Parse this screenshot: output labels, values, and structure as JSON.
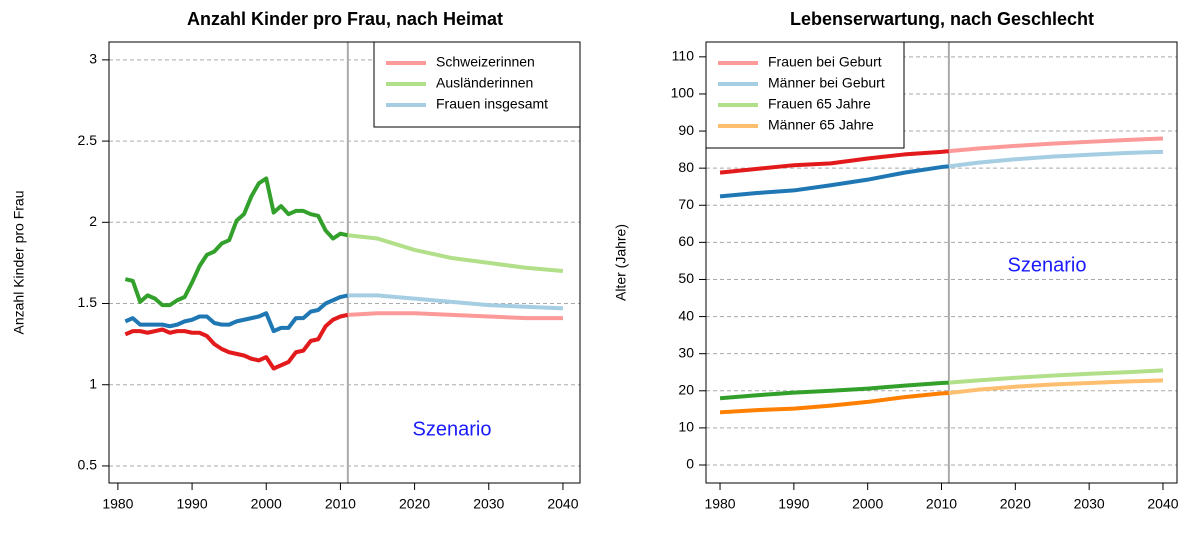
{
  "chart_data": [
    {
      "type": "line",
      "title": "Anzahl Kinder pro Frau, nach Heimat",
      "y_label": "Anzahl Kinder pro Frau",
      "annotation": "Szenario",
      "x": [
        1981,
        1982,
        1983,
        1984,
        1985,
        1986,
        1987,
        1988,
        1989,
        1990,
        1991,
        1992,
        1993,
        1994,
        1995,
        1996,
        1997,
        1998,
        1999,
        2000,
        2001,
        2002,
        2003,
        2004,
        2005,
        2006,
        2007,
        2008,
        2009,
        2010,
        2011,
        2015,
        2020,
        2025,
        2030,
        2035,
        2040
      ],
      "scenario_start": 2011,
      "series": [
        {
          "name": "Schweizerinnen",
          "color": "#fb9a99",
          "history_color": "#e31a1c",
          "values": [
            1.31,
            1.33,
            1.33,
            1.32,
            1.33,
            1.34,
            1.32,
            1.33,
            1.33,
            1.32,
            1.32,
            1.3,
            1.25,
            1.22,
            1.2,
            1.19,
            1.18,
            1.16,
            1.15,
            1.17,
            1.1,
            1.12,
            1.14,
            1.2,
            1.21,
            1.27,
            1.28,
            1.36,
            1.4,
            1.42,
            1.43,
            1.44,
            1.44,
            1.43,
            1.42,
            1.41,
            1.41
          ]
        },
        {
          "name": "Ausländerinnen",
          "color": "#b2df8a",
          "history_color": "#33a02c",
          "values": [
            1.65,
            1.64,
            1.51,
            1.55,
            1.53,
            1.49,
            1.49,
            1.52,
            1.54,
            1.63,
            1.73,
            1.8,
            1.82,
            1.87,
            1.89,
            2.01,
            2.05,
            2.16,
            2.24,
            2.27,
            2.06,
            2.1,
            2.05,
            2.07,
            2.07,
            2.05,
            2.04,
            1.95,
            1.9,
            1.93,
            1.92,
            1.9,
            1.83,
            1.78,
            1.75,
            1.72,
            1.7
          ]
        },
        {
          "name": "Frauen insgesamt",
          "color": "#a6cee3",
          "history_color": "#1f78b4",
          "values": [
            1.39,
            1.41,
            1.37,
            1.37,
            1.37,
            1.37,
            1.36,
            1.37,
            1.39,
            1.4,
            1.42,
            1.42,
            1.38,
            1.37,
            1.37,
            1.39,
            1.4,
            1.41,
            1.42,
            1.44,
            1.33,
            1.35,
            1.35,
            1.41,
            1.41,
            1.45,
            1.46,
            1.5,
            1.52,
            1.54,
            1.55,
            1.55,
            1.53,
            1.51,
            1.49,
            1.48,
            1.47
          ]
        }
      ],
      "xlim": [
        1978.8,
        2042.3
      ],
      "xticks": [
        1980,
        1990,
        2000,
        2010,
        2020,
        2030,
        2040
      ],
      "ylim": [
        0.395,
        3.11
      ],
      "yticks": [
        0.5,
        1,
        1.5,
        2,
        2.5,
        3
      ],
      "grid": true,
      "legend": "top-right"
    },
    {
      "type": "line",
      "title": "Lebenserwartung, nach Geschlecht",
      "y_label": "Alter (Jahre)",
      "annotation": "Szenario",
      "x": [
        1980,
        1985,
        1990,
        1995,
        2000,
        2005,
        2010,
        2011,
        2015,
        2020,
        2025,
        2030,
        2035,
        2040
      ],
      "scenario_start": 2011,
      "series": [
        {
          "name": "Frauen bei Geburt",
          "color": "#fb9a99",
          "history_color": "#e31a1c",
          "values": [
            78.8,
            79.8,
            80.8,
            81.3,
            82.6,
            83.7,
            84.4,
            84.6,
            85.3,
            86.0,
            86.6,
            87.1,
            87.6,
            88.0
          ]
        },
        {
          "name": "Männer bei Geburt",
          "color": "#a6cee3",
          "history_color": "#1f78b4",
          "values": [
            72.4,
            73.3,
            74.0,
            75.4,
            76.9,
            78.8,
            80.3,
            80.5,
            81.5,
            82.4,
            83.1,
            83.6,
            84.1,
            84.4
          ]
        },
        {
          "name": "Frauen 65 Jahre",
          "color": "#b2df8a",
          "history_color": "#33a02c",
          "values": [
            18.0,
            18.8,
            19.5,
            20.0,
            20.6,
            21.4,
            22.1,
            22.2,
            22.8,
            23.5,
            24.1,
            24.6,
            25.0,
            25.5
          ]
        },
        {
          "name": "Männer 65 Jahre",
          "color": "#fdbf6f",
          "history_color": "#ff7f00",
          "values": [
            14.2,
            14.8,
            15.2,
            16.0,
            17.0,
            18.3,
            19.3,
            19.4,
            20.3,
            21.1,
            21.7,
            22.1,
            22.5,
            22.8
          ]
        }
      ],
      "xlim": [
        1978.1,
        2041.9
      ],
      "xticks": [
        1980,
        1990,
        2000,
        2010,
        2020,
        2030,
        2040
      ],
      "ylim": [
        -4.85,
        114
      ],
      "yticks": [
        0,
        10,
        20,
        30,
        40,
        50,
        60,
        70,
        80,
        90,
        100,
        110
      ],
      "grid": true,
      "legend": "top-left"
    }
  ]
}
